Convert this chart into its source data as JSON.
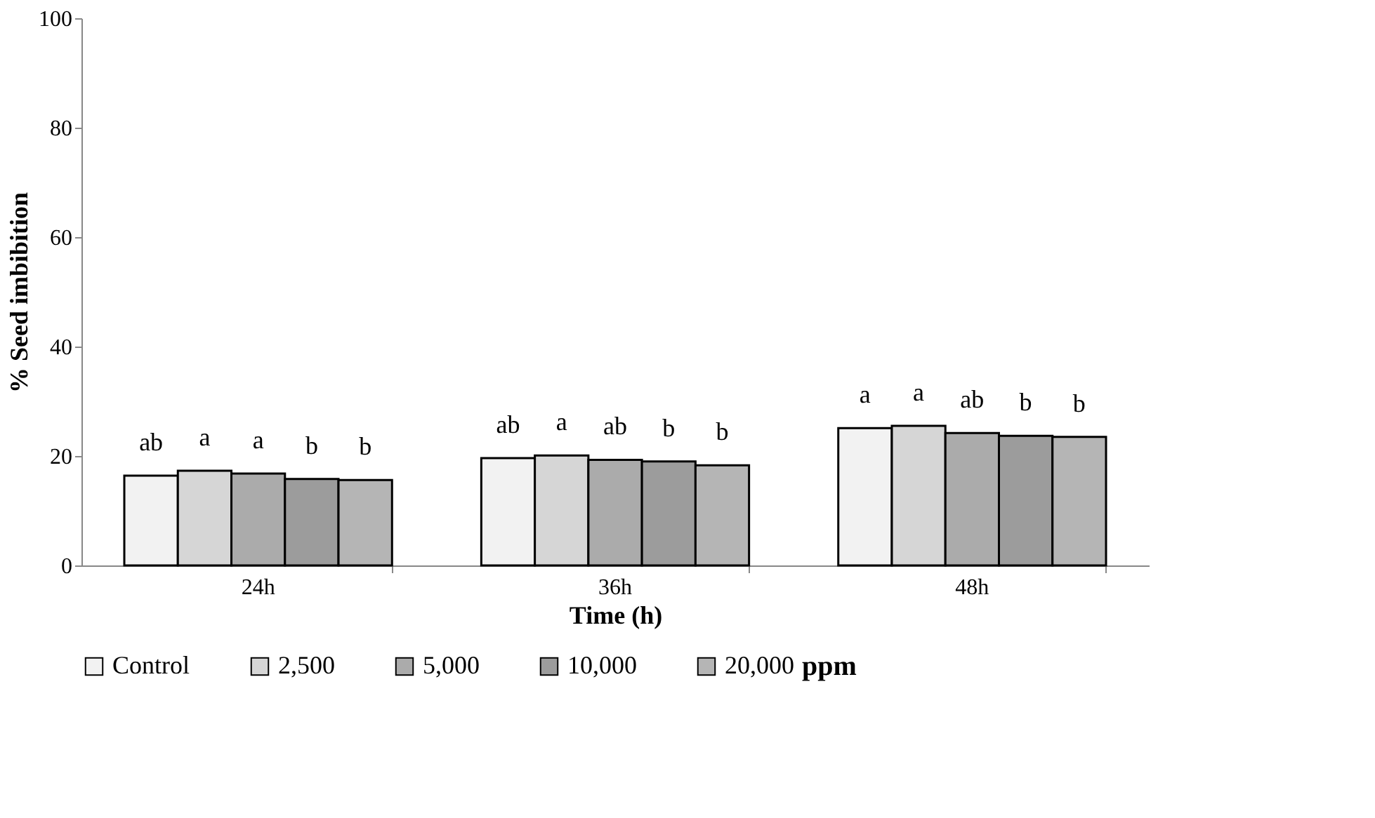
{
  "chart_data": {
    "type": "bar",
    "xlabel": "Time (h)",
    "ylabel": "% Seed imbibition",
    "legend_title": "ppm",
    "legend": "bottom",
    "grid": false,
    "categories": [
      "24h",
      "36h",
      "48h"
    ],
    "ylim": [
      0,
      100
    ],
    "yticks": [
      0,
      20,
      40,
      60,
      80,
      100
    ],
    "series": [
      {
        "name": "Control",
        "color": "#f2f2f2",
        "values": [
          16.4,
          19.6,
          25.1
        ],
        "value_labels": [
          "ab",
          "ab",
          "a"
        ]
      },
      {
        "name": "2,500",
        "color": "#d6d6d6",
        "values": [
          17.3,
          20.1,
          25.5
        ],
        "value_labels": [
          "a",
          "a",
          "a"
        ]
      },
      {
        "name": "5,000",
        "color": "#ababab",
        "values": [
          16.8,
          19.3,
          24.2
        ],
        "value_labels": [
          "a",
          "ab",
          "ab"
        ]
      },
      {
        "name": "10,000",
        "color": "#9c9c9c",
        "values": [
          15.8,
          19.0,
          23.7
        ],
        "value_labels": [
          "b",
          "b",
          "b"
        ]
      },
      {
        "name": "20,000",
        "color": "#b5b5b5",
        "values": [
          15.6,
          18.3,
          23.5
        ],
        "value_labels": [
          "b",
          "b",
          "b"
        ]
      }
    ]
  }
}
